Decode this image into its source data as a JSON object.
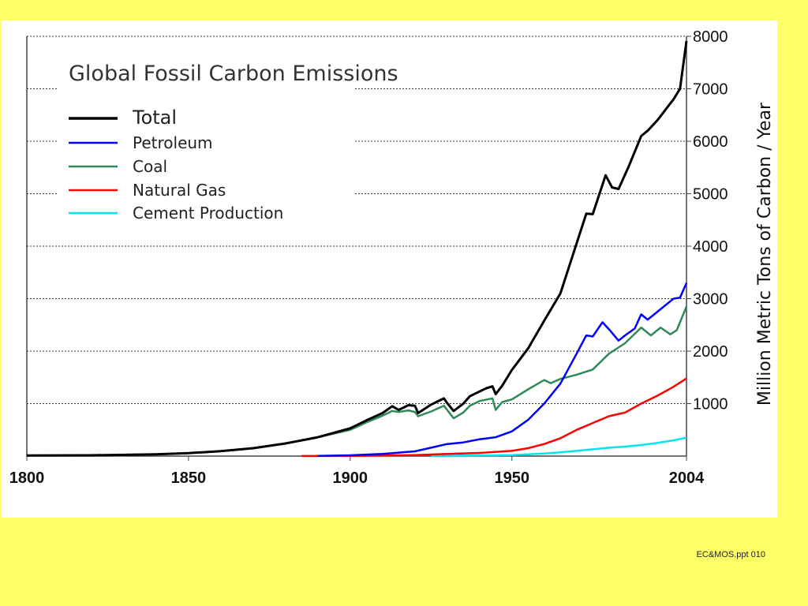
{
  "slide": {
    "footer": "EC&MOS.ppt 010",
    "background_color": "#ffff66"
  },
  "chart_data": {
    "type": "line",
    "title": "Global Fossil Carbon Emissions",
    "xlabel": "",
    "ylabel": "Million Metric Tons of Carbon / Year",
    "xlim": [
      1800,
      2004
    ],
    "ylim": [
      0,
      8000
    ],
    "x_ticks": [
      "1800",
      "1850",
      "1900",
      "1950",
      "2004"
    ],
    "y_ticks": [
      "1000",
      "2000",
      "3000",
      "4000",
      "5000",
      "6000",
      "7000",
      "8000"
    ],
    "grid": "horizontal dotted",
    "legend_position": "top-left",
    "series": [
      {
        "name": "Total",
        "color": "#000000",
        "points": [
          [
            1800,
            10
          ],
          [
            1820,
            15
          ],
          [
            1840,
            35
          ],
          [
            1850,
            55
          ],
          [
            1860,
            95
          ],
          [
            1870,
            150
          ],
          [
            1880,
            240
          ],
          [
            1890,
            360
          ],
          [
            1900,
            530
          ],
          [
            1905,
            680
          ],
          [
            1910,
            820
          ],
          [
            1913,
            950
          ],
          [
            1915,
            880
          ],
          [
            1918,
            970
          ],
          [
            1920,
            960
          ],
          [
            1921,
            820
          ],
          [
            1925,
            980
          ],
          [
            1929,
            1100
          ],
          [
            1930,
            1010
          ],
          [
            1932,
            860
          ],
          [
            1935,
            1000
          ],
          [
            1937,
            1140
          ],
          [
            1940,
            1230
          ],
          [
            1942,
            1290
          ],
          [
            1944,
            1330
          ],
          [
            1945,
            1180
          ],
          [
            1947,
            1340
          ],
          [
            1950,
            1640
          ],
          [
            1955,
            2050
          ],
          [
            1960,
            2580
          ],
          [
            1965,
            3100
          ],
          [
            1970,
            4050
          ],
          [
            1973,
            4620
          ],
          [
            1975,
            4610
          ],
          [
            1979,
            5350
          ],
          [
            1981,
            5120
          ],
          [
            1983,
            5090
          ],
          [
            1986,
            5500
          ],
          [
            1990,
            6100
          ],
          [
            1992,
            6200
          ],
          [
            1995,
            6400
          ],
          [
            2000,
            6800
          ],
          [
            2002,
            7000
          ],
          [
            2004,
            7910
          ]
        ]
      },
      {
        "name": "Petroleum",
        "color": "#0000ff",
        "points": [
          [
            1890,
            5
          ],
          [
            1900,
            15
          ],
          [
            1910,
            40
          ],
          [
            1920,
            90
          ],
          [
            1925,
            160
          ],
          [
            1930,
            230
          ],
          [
            1935,
            260
          ],
          [
            1940,
            320
          ],
          [
            1945,
            360
          ],
          [
            1950,
            470
          ],
          [
            1955,
            690
          ],
          [
            1960,
            1000
          ],
          [
            1965,
            1380
          ],
          [
            1970,
            1950
          ],
          [
            1973,
            2300
          ],
          [
            1975,
            2280
          ],
          [
            1978,
            2550
          ],
          [
            1980,
            2420
          ],
          [
            1983,
            2200
          ],
          [
            1985,
            2300
          ],
          [
            1988,
            2430
          ],
          [
            1990,
            2700
          ],
          [
            1992,
            2600
          ],
          [
            1995,
            2750
          ],
          [
            2000,
            3000
          ],
          [
            2002,
            3020
          ],
          [
            2004,
            3300
          ]
        ]
      },
      {
        "name": "Coal",
        "color": "#2e8b57",
        "points": [
          [
            1800,
            10
          ],
          [
            1820,
            15
          ],
          [
            1840,
            35
          ],
          [
            1850,
            55
          ],
          [
            1860,
            95
          ],
          [
            1870,
            150
          ],
          [
            1880,
            240
          ],
          [
            1890,
            360
          ],
          [
            1900,
            500
          ],
          [
            1905,
            640
          ],
          [
            1910,
            770
          ],
          [
            1913,
            860
          ],
          [
            1915,
            840
          ],
          [
            1918,
            870
          ],
          [
            1920,
            840
          ],
          [
            1921,
            760
          ],
          [
            1925,
            850
          ],
          [
            1929,
            960
          ],
          [
            1932,
            720
          ],
          [
            1935,
            830
          ],
          [
            1937,
            960
          ],
          [
            1940,
            1050
          ],
          [
            1944,
            1100
          ],
          [
            1945,
            880
          ],
          [
            1947,
            1030
          ],
          [
            1950,
            1080
          ],
          [
            1955,
            1270
          ],
          [
            1960,
            1450
          ],
          [
            1962,
            1390
          ],
          [
            1965,
            1470
          ],
          [
            1970,
            1550
          ],
          [
            1975,
            1650
          ],
          [
            1980,
            1950
          ],
          [
            1985,
            2150
          ],
          [
            1990,
            2450
          ],
          [
            1993,
            2300
          ],
          [
            1996,
            2450
          ],
          [
            1999,
            2320
          ],
          [
            2001,
            2400
          ],
          [
            2004,
            2850
          ]
        ]
      },
      {
        "name": "Natural Gas",
        "color": "#ff0000",
        "points": [
          [
            1885,
            2
          ],
          [
            1900,
            5
          ],
          [
            1910,
            10
          ],
          [
            1920,
            20
          ],
          [
            1930,
            40
          ],
          [
            1940,
            60
          ],
          [
            1950,
            100
          ],
          [
            1955,
            150
          ],
          [
            1960,
            230
          ],
          [
            1965,
            340
          ],
          [
            1970,
            500
          ],
          [
            1975,
            630
          ],
          [
            1980,
            760
          ],
          [
            1985,
            830
          ],
          [
            1990,
            1000
          ],
          [
            1995,
            1150
          ],
          [
            2000,
            1320
          ],
          [
            2004,
            1480
          ]
        ]
      },
      {
        "name": "Cement Production",
        "color": "#00e5ee",
        "points": [
          [
            1925,
            5
          ],
          [
            1935,
            10
          ],
          [
            1945,
            15
          ],
          [
            1950,
            20
          ],
          [
            1955,
            35
          ],
          [
            1960,
            50
          ],
          [
            1965,
            70
          ],
          [
            1970,
            100
          ],
          [
            1975,
            130
          ],
          [
            1980,
            160
          ],
          [
            1985,
            180
          ],
          [
            1990,
            210
          ],
          [
            1995,
            250
          ],
          [
            2000,
            300
          ],
          [
            2004,
            350
          ]
        ]
      }
    ]
  }
}
